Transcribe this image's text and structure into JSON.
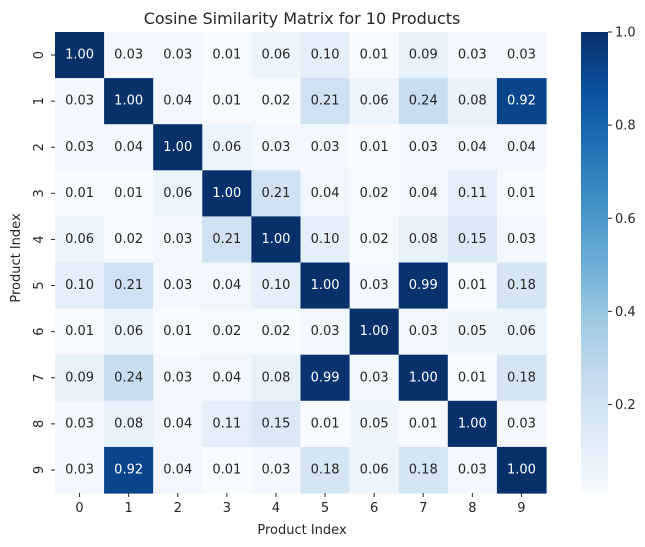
{
  "chart_data": {
    "type": "heatmap",
    "title": "Cosine Similarity Matrix for 10 Products",
    "xlabel": "Product Index",
    "ylabel": "Product Index",
    "x_categories": [
      "0",
      "1",
      "2",
      "3",
      "4",
      "5",
      "6",
      "7",
      "8",
      "9"
    ],
    "y_categories": [
      "0",
      "1",
      "2",
      "3",
      "4",
      "5",
      "6",
      "7",
      "8",
      "9"
    ],
    "values": [
      [
        1.0,
        0.03,
        0.03,
        0.01,
        0.06,
        0.1,
        0.01,
        0.09,
        0.03,
        0.03
      ],
      [
        0.03,
        1.0,
        0.04,
        0.01,
        0.02,
        0.21,
        0.06,
        0.24,
        0.08,
        0.92
      ],
      [
        0.03,
        0.04,
        1.0,
        0.06,
        0.03,
        0.03,
        0.01,
        0.03,
        0.04,
        0.04
      ],
      [
        0.01,
        0.01,
        0.06,
        1.0,
        0.21,
        0.04,
        0.02,
        0.04,
        0.11,
        0.01
      ],
      [
        0.06,
        0.02,
        0.03,
        0.21,
        1.0,
        0.1,
        0.02,
        0.08,
        0.15,
        0.03
      ],
      [
        0.1,
        0.21,
        0.03,
        0.04,
        0.1,
        1.0,
        0.03,
        0.99,
        0.01,
        0.18
      ],
      [
        0.01,
        0.06,
        0.01,
        0.02,
        0.02,
        0.03,
        1.0,
        0.03,
        0.05,
        0.06
      ],
      [
        0.09,
        0.24,
        0.03,
        0.04,
        0.08,
        0.99,
        0.03,
        1.0,
        0.01,
        0.18
      ],
      [
        0.03,
        0.08,
        0.04,
        0.11,
        0.15,
        0.01,
        0.05,
        0.01,
        1.0,
        0.03
      ],
      [
        0.03,
        0.92,
        0.04,
        0.01,
        0.03,
        0.18,
        0.06,
        0.18,
        0.03,
        1.0
      ]
    ],
    "color_scale": {
      "name": "Blues",
      "min": 0.01,
      "max": 1.0,
      "low_color": "#f7fbff",
      "high_color": "#08306b"
    },
    "colorbar_ticks": [
      "0.2",
      "0.4",
      "0.6",
      "0.8",
      "1.0"
    ],
    "colorbar_tick_values": [
      0.2,
      0.4,
      0.6,
      0.8,
      1.0
    ],
    "annotation_format": "2 decimals",
    "grid": false,
    "legend": "colorbar-right"
  }
}
